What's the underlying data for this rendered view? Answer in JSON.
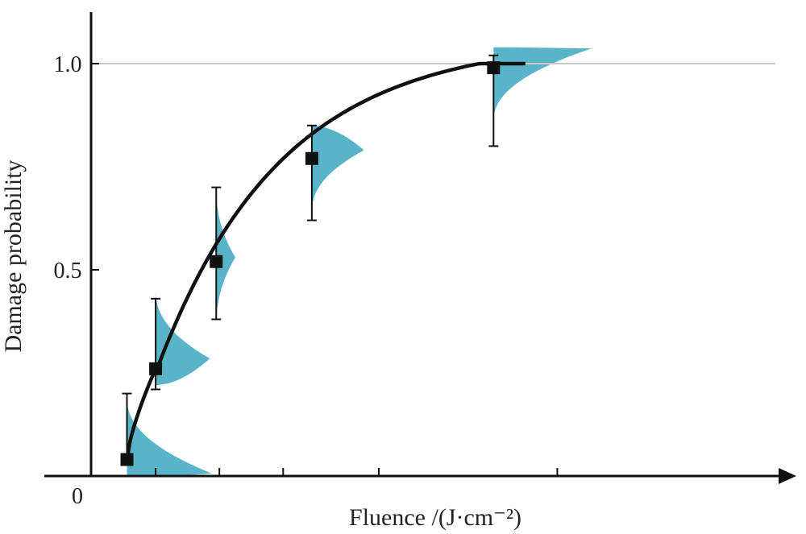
{
  "chart_data": {
    "type": "scatter",
    "xlabel": "Fluence /(J·cm⁻²)",
    "ylabel": "Damage probability",
    "origin_label": "0",
    "y_ticks": [
      {
        "value": 0.5,
        "label": "0.5"
      },
      {
        "value": 1.0,
        "label": "1.0"
      }
    ],
    "ylim": [
      0,
      1.1
    ],
    "xlim": [
      0,
      8.6
    ],
    "x_ticks_labeled": false,
    "x_tick_values": [
      1,
      2,
      3,
      4.5,
      7.3
    ],
    "reference_line": {
      "y": 1.0,
      "color": "#c8c8c8"
    },
    "grid": false,
    "legend": "none",
    "points": [
      {
        "x": 0.55,
        "y": 0.04,
        "err_low": 0.04,
        "err_high": 0.2
      },
      {
        "x": 1.0,
        "y": 0.26,
        "err_low": 0.21,
        "err_high": 0.43
      },
      {
        "x": 1.95,
        "y": 0.52,
        "err_low": 0.38,
        "err_high": 0.7
      },
      {
        "x": 3.45,
        "y": 0.77,
        "err_low": 0.62,
        "err_high": 0.85
      },
      {
        "x": 6.3,
        "y": 0.99,
        "err_low": 0.8,
        "err_high": 1.02
      }
    ],
    "fit_curve": {
      "x_start": 0.55,
      "x_end": 6.8,
      "color": "#111111"
    },
    "distributions": [
      {
        "x": 0.55,
        "y_low": 0.0,
        "y_high": 0.19,
        "peak_y": 0.005,
        "width": 1.35,
        "shape": "right-skew"
      },
      {
        "x": 1.0,
        "y_low": 0.22,
        "y_high": 0.45,
        "peak_y": 0.285,
        "width": 0.85,
        "shape": "right-skew"
      },
      {
        "x": 1.95,
        "y_low": 0.36,
        "y_high": 0.7,
        "peak_y": 0.53,
        "width": 0.3,
        "shape": "symmetric"
      },
      {
        "x": 3.45,
        "y_low": 0.64,
        "y_high": 0.85,
        "peak_y": 0.79,
        "width": 0.82,
        "shape": "left-skew"
      },
      {
        "x": 6.3,
        "y_low": 0.86,
        "y_high": 1.04,
        "peak_y": 1.04,
        "width": 1.6,
        "shape": "left-skew"
      }
    ],
    "colors": {
      "distribution": "#5ab4c9",
      "marker": "#111111",
      "axis": "#111111"
    }
  }
}
